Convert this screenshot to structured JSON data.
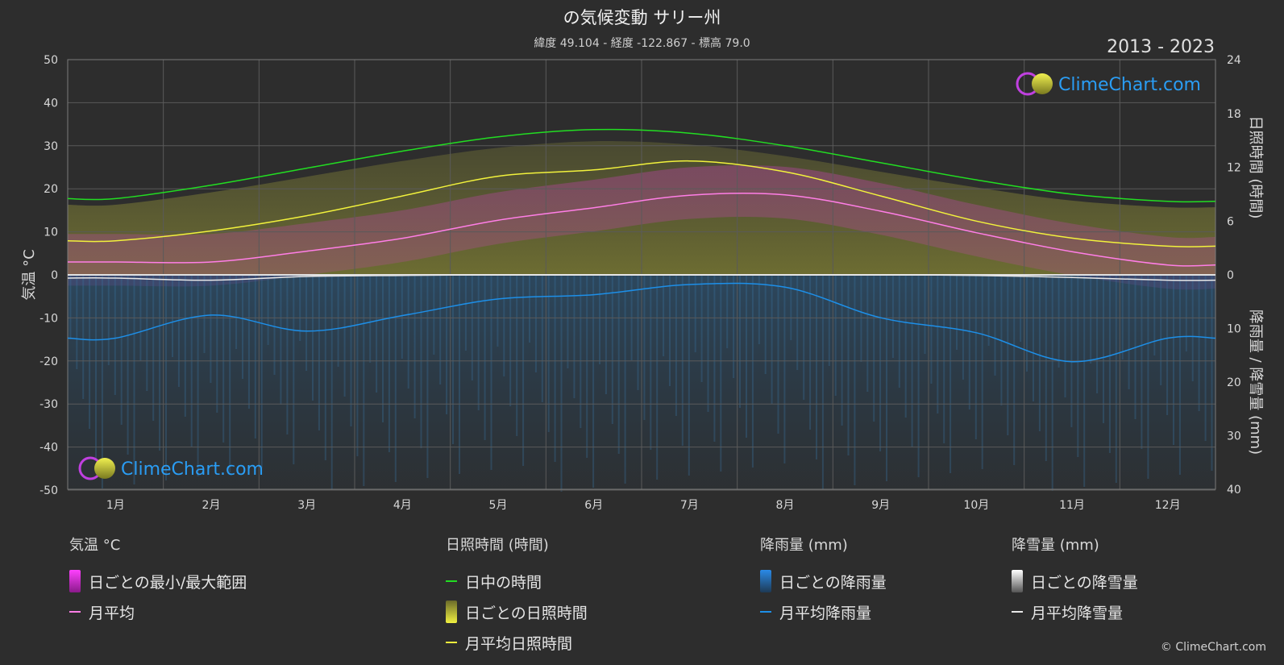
{
  "header": {
    "title": "の気候変動 サリー州",
    "subtitle": "緯度 49.104 - 経度 -122.867 - 標高 79.0",
    "period": "2013 - 2023"
  },
  "brand": {
    "logo_text": "ClimeChart.com",
    "copyright": "© ClimeChart.com"
  },
  "colors": {
    "daylight": "#22dd22",
    "sunshine_avg": "#f2f23c",
    "temp_avg": "#ff7ee6",
    "rain_avg": "#1d8fe8",
    "snow_avg": "#e8e8e8",
    "temp_range": "#e020e0",
    "sunshine_daily": "#d8d838",
    "rain_daily": "#1f6aa8",
    "snow_daily": "#9a9a9a",
    "brand_blue": "#2a9df4"
  },
  "chart_data": {
    "type": "line",
    "categories": [
      "1月",
      "2月",
      "3月",
      "4月",
      "5月",
      "6月",
      "7月",
      "8月",
      "9月",
      "10月",
      "11月",
      "12月"
    ],
    "y_left": {
      "label": "気温 °C",
      "ticks": [
        50,
        40,
        30,
        20,
        10,
        0,
        -10,
        -20,
        -30,
        -40,
        -50
      ],
      "ylim": [
        -50,
        50
      ]
    },
    "y_right_top": {
      "label": "日照時間 (時間)",
      "ticks": [
        24,
        18,
        12,
        6,
        0
      ],
      "ylim": [
        0,
        24
      ]
    },
    "y_right_bottom": {
      "label": "降雨量 / 降雪量 (mm)",
      "ticks": [
        0,
        10,
        20,
        30,
        40
      ],
      "ylim": [
        0,
        40
      ]
    },
    "series": [
      {
        "name": "日中の時間",
        "axis": "sunshine",
        "values": [
          8.5,
          10.0,
          11.9,
          13.8,
          15.4,
          16.2,
          15.8,
          14.4,
          12.5,
          10.6,
          9.0,
          8.2
        ]
      },
      {
        "name": "月平均日照時間",
        "axis": "sunshine",
        "values": [
          3.8,
          4.9,
          6.6,
          8.8,
          11.0,
          11.7,
          12.7,
          11.5,
          8.8,
          6.0,
          4.1,
          3.2
        ]
      },
      {
        "name": "月平均",
        "axis": "temp",
        "values": [
          3.0,
          3.0,
          5.5,
          8.5,
          12.7,
          15.6,
          18.5,
          18.6,
          14.8,
          9.8,
          5.4,
          2.3
        ]
      },
      {
        "name": "月平均降雨量",
        "axis": "precip",
        "values": [
          11.8,
          7.5,
          10.5,
          7.6,
          4.5,
          3.7,
          1.8,
          2.3,
          8.0,
          10.8,
          16.2,
          11.8
        ]
      },
      {
        "name": "月平均降雪量",
        "axis": "precip",
        "values": [
          0.6,
          1.0,
          0.3,
          0.1,
          0,
          0,
          0,
          0,
          0,
          0.1,
          0.5,
          1.0
        ]
      }
    ],
    "grid": true,
    "legend_position": "bottom"
  },
  "legend": {
    "temperature": {
      "heading": "気温 °C",
      "items": [
        "日ごとの最小/最大範囲",
        "月平均"
      ]
    },
    "sunshine": {
      "heading": "日照時間 (時間)",
      "items": [
        "日中の時間",
        "日ごとの日照時間",
        "月平均日照時間"
      ]
    },
    "rain": {
      "heading": "降雨量 (mm)",
      "items": [
        "日ごとの降雨量",
        "月平均降雨量"
      ]
    },
    "snow": {
      "heading": "降雪量 (mm)",
      "items": [
        "日ごとの降雪量",
        "月平均降雪量"
      ]
    }
  }
}
